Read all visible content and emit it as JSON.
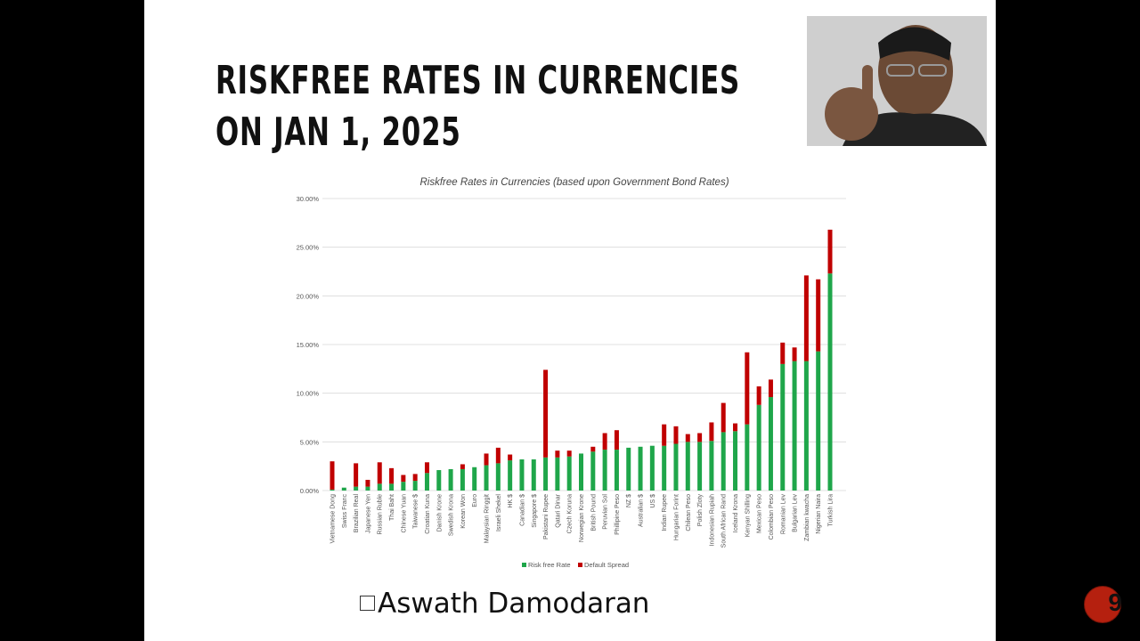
{
  "slide": {
    "title": "Riskfree Rates in Currencies on Jan 1, 2025",
    "footer": "Aswath Damodaran",
    "page_number": "9"
  },
  "colors": {
    "risk_free": "#1fa64a",
    "default_spread": "#c00000"
  },
  "chart_data": {
    "type": "bar",
    "stacked": true,
    "title": "Riskfree Rates in Currencies (based upon Government Bond Rates)",
    "xlabel": "",
    "ylabel": "",
    "ylim": [
      0,
      30
    ],
    "yticks": [
      "0.00%",
      "5.00%",
      "10.00%",
      "15.00%",
      "20.00%",
      "25.00%",
      "30.00%"
    ],
    "grid": true,
    "legend": "bottom",
    "categories": [
      "Vietnamese Dong",
      "Swiss Franc",
      "Brazilian Real",
      "Japanese Yen",
      "Russian Ruble",
      "Thai Baht",
      "Chinese Yuan",
      "Taiwanese $",
      "Croatian Kuna",
      "Danish Krone",
      "Swedish Krona",
      "Korean Won",
      "Euro",
      "Malaysian Ringgit",
      "Israeli Shekel",
      "HK $",
      "Canadian $",
      "Singapore $",
      "Pakistani Rupee",
      "Qatari Dinar",
      "Czech Koruna",
      "Norwegian Krone",
      "British Pound",
      "Peruvian Sol",
      "Phillipine Peso",
      "NZ $",
      "Australian $",
      "US $",
      "Indian Rupee",
      "Hungarian Forint",
      "Chilean Peso",
      "Polish Zloty",
      "Indonesian Rupiah",
      "South African Rand",
      "Iceland Krona",
      "Kenyan Shilling",
      "Mexican Peso",
      "Colombian Peso",
      "Romanian Lev",
      "Bulgarian Lev",
      "Zambian kwacha",
      "Nigerian Naira",
      "Turkish Lira"
    ],
    "series": [
      {
        "name": "Risk free Rate",
        "values": [
          0.1,
          0.3,
          0.4,
          0.4,
          0.7,
          0.7,
          0.9,
          1.0,
          1.8,
          2.1,
          2.2,
          2.2,
          2.4,
          2.6,
          2.8,
          3.1,
          3.2,
          3.2,
          3.4,
          3.4,
          3.5,
          3.8,
          4.0,
          4.2,
          4.2,
          4.4,
          4.5,
          4.6,
          4.6,
          4.8,
          5.0,
          5.0,
          5.1,
          6.0,
          6.1,
          6.8,
          8.8,
          9.6,
          13.0,
          13.3,
          13.3,
          14.3,
          22.3
        ]
      },
      {
        "name": "Default Spread",
        "values": [
          2.9,
          0,
          2.4,
          0.7,
          2.2,
          1.6,
          0.7,
          0.7,
          1.1,
          0,
          0,
          0.5,
          0,
          1.2,
          1.6,
          0.6,
          0,
          0,
          9.0,
          0.7,
          0.6,
          0,
          0.5,
          1.7,
          2.0,
          0,
          0,
          0,
          2.2,
          1.8,
          0.8,
          0.9,
          1.9,
          3.0,
          0.8,
          7.4,
          1.9,
          1.8,
          2.2,
          1.4,
          8.8,
          7.4,
          4.5
        ]
      }
    ]
  }
}
